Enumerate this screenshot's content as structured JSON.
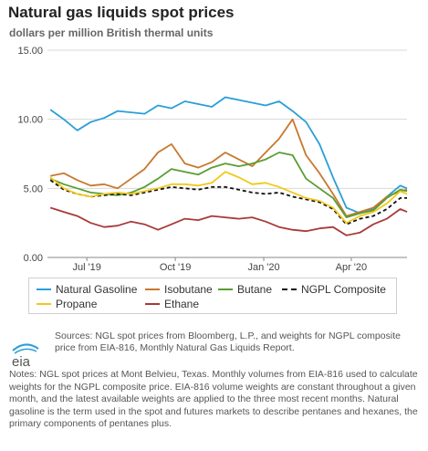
{
  "title": "Natural gas liquids spot prices",
  "subtitle": "dollars per million British thermal units",
  "colors": {
    "natural_gasoline": "#2a9fd6",
    "isobutane": "#c8782f",
    "butane": "#5a9e33",
    "ngpl_composite": "#111111",
    "propane": "#f2c81a",
    "ethane": "#a83a3a"
  },
  "chart_data": {
    "type": "line",
    "ylim": [
      0,
      15
    ],
    "yticks": [
      "15.00",
      "10.00",
      "5.00",
      "0.00"
    ],
    "ytick_values": [
      15,
      10,
      5,
      0
    ],
    "xlim": [
      "2019-05-21",
      "2020-05-29"
    ],
    "xticks": [
      "Jul '19",
      "Oct '19",
      "Jan '20",
      "Apr '20"
    ],
    "xtick_dates": [
      "2019-07-01",
      "2019-10-01",
      "2020-01-01",
      "2020-04-01"
    ],
    "x": [
      "2019-05-24",
      "2019-06-07",
      "2019-06-21",
      "2019-07-05",
      "2019-07-19",
      "2019-08-02",
      "2019-08-16",
      "2019-08-30",
      "2019-09-13",
      "2019-09-27",
      "2019-10-11",
      "2019-10-25",
      "2019-11-08",
      "2019-11-22",
      "2019-12-06",
      "2019-12-20",
      "2020-01-03",
      "2020-01-17",
      "2020-01-31",
      "2020-02-14",
      "2020-02-28",
      "2020-03-13",
      "2020-03-27",
      "2020-04-10",
      "2020-04-24",
      "2020-05-08",
      "2020-05-22",
      "2020-05-29"
    ],
    "series": [
      {
        "name": "Natural Gasoline",
        "color": "#2a9fd6",
        "values": [
          10.7,
          10.0,
          9.2,
          9.8,
          10.1,
          10.6,
          10.5,
          10.4,
          11.0,
          10.8,
          11.3,
          11.1,
          10.9,
          11.6,
          11.4,
          11.2,
          11.0,
          11.3,
          10.6,
          9.8,
          8.2,
          5.8,
          3.6,
          3.2,
          3.5,
          4.4,
          5.2,
          5.0
        ]
      },
      {
        "name": "Isobutane",
        "color": "#c8782f",
        "values": [
          5.9,
          6.1,
          5.6,
          5.2,
          5.3,
          5.0,
          5.7,
          6.4,
          7.6,
          8.2,
          6.8,
          6.5,
          6.9,
          7.6,
          7.1,
          6.6,
          7.6,
          8.6,
          10.0,
          7.4,
          6.1,
          4.6,
          3.0,
          3.3,
          3.6,
          4.4,
          4.8,
          4.9
        ]
      },
      {
        "name": "Butane",
        "color": "#5a9e33",
        "values": [
          5.7,
          5.3,
          5.0,
          4.7,
          4.6,
          4.5,
          4.7,
          5.1,
          5.7,
          6.4,
          6.2,
          6.0,
          6.5,
          6.8,
          6.6,
          6.8,
          7.1,
          7.6,
          7.4,
          5.7,
          5.0,
          4.3,
          2.9,
          3.2,
          3.4,
          4.3,
          4.9,
          4.8
        ]
      },
      {
        "name": "NGPL Composite",
        "color": "#111111",
        "dash": true,
        "values": [
          5.6,
          4.9,
          4.6,
          4.4,
          4.5,
          4.6,
          4.5,
          4.7,
          4.9,
          5.1,
          5.0,
          4.9,
          5.1,
          5.1,
          4.9,
          4.7,
          4.6,
          4.7,
          4.4,
          4.2,
          4.0,
          3.5,
          2.4,
          2.8,
          3.0,
          3.5,
          4.3,
          4.3
        ]
      },
      {
        "name": "Propane",
        "color": "#f2c81a",
        "values": [
          5.8,
          5.0,
          4.6,
          4.4,
          4.6,
          4.7,
          4.6,
          4.8,
          5.0,
          5.3,
          5.3,
          5.2,
          5.4,
          6.2,
          5.8,
          5.3,
          5.4,
          5.1,
          4.7,
          4.3,
          4.1,
          3.6,
          2.5,
          3.0,
          3.3,
          3.9,
          4.8,
          4.6
        ]
      },
      {
        "name": "Ethane",
        "color": "#a83a3a",
        "values": [
          3.6,
          3.3,
          3.0,
          2.5,
          2.2,
          2.3,
          2.6,
          2.4,
          2.0,
          2.4,
          2.8,
          2.7,
          3.0,
          2.9,
          2.8,
          2.9,
          2.6,
          2.2,
          2.0,
          1.9,
          2.1,
          2.2,
          1.6,
          1.8,
          2.4,
          2.8,
          3.5,
          3.3
        ]
      }
    ],
    "grid": true,
    "legend_position": "bottom"
  },
  "legend": {
    "items": [
      {
        "label": "Natural Gasoline"
      },
      {
        "label": "Isobutane"
      },
      {
        "label": "Butane"
      },
      {
        "label": "NGPL Composite"
      },
      {
        "label": "Propane"
      },
      {
        "label": "Ethane"
      }
    ]
  },
  "footer": {
    "logo_text": "eia",
    "source": "Sources: NGL spot prices from Bloomberg, L.P., and weights for NGPL composite price from EIA-816, Monthly Natural Gas Liquids Report.",
    "notes": "Notes: NGL spot prices at Mont Belvieu, Texas. Monthly volumes from EIA-816 used to calculate weights for the NGPL composite price. EIA-816 volume weights are constant throughout a given month, and the latest available weights are applied to the three most recent months. Natural gasoline is the term used in the spot and futures markets to describe pentanes and hexanes, the primary components of pentanes plus."
  }
}
